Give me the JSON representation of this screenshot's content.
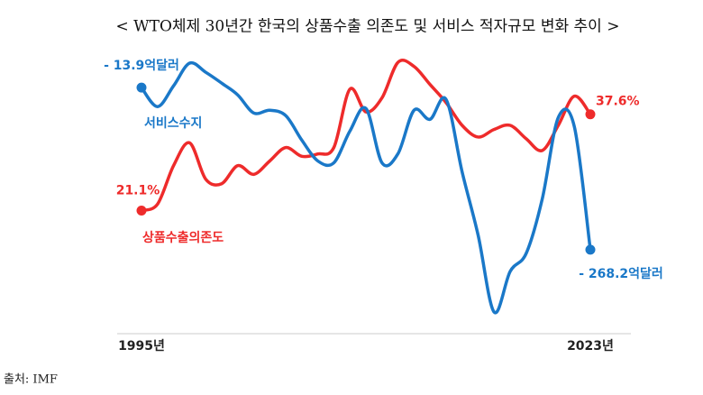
{
  "chart_data": {
    "type": "line",
    "title": "< WTO체제 30년간 한국의 상품수출 의존도 및 서비스 적자규모 변화 추이 >",
    "source": "출처: IMF",
    "categories": [
      "1995년",
      null,
      null,
      null,
      null,
      null,
      null,
      null,
      null,
      null,
      null,
      null,
      null,
      null,
      null,
      null,
      null,
      null,
      null,
      null,
      null,
      null,
      null,
      null,
      null,
      null,
      null,
      null,
      "2023년"
    ],
    "ylim": [
      0,
      51
    ],
    "y2lim": [
      -400,
      67
    ],
    "series": [
      {
        "name": "상품수출의존도",
        "color": "#ee2b2b",
        "values": [
          21.1,
          22.2,
          28.8,
          32.7,
          26.5,
          25.7,
          28.8,
          27.3,
          29.6,
          31.9,
          30.4,
          30.8,
          31.9,
          41.9,
          38.0,
          40.4,
          46.5,
          45.8,
          42.7,
          39.6,
          35.7,
          33.7,
          35.0,
          35.7,
          33.4,
          31.4,
          35.7,
          40.7,
          37.6
        ],
        "value_labels": [
          "21.1%",
          null,
          null,
          null,
          null,
          null,
          null,
          null,
          null,
          null,
          null,
          null,
          null,
          null,
          null,
          null,
          null,
          null,
          null,
          null,
          null,
          null,
          null,
          null,
          null,
          null,
          null,
          null,
          "37.6%"
        ]
      },
      {
        "name": "서비스수지",
        "color": "#1a78c8",
        "axis": "y2",
        "values": [
          -13.9,
          -43.7,
          -11.1,
          24.5,
          10.3,
          -6.8,
          -25.3,
          -53.7,
          -49.4,
          -57.9,
          -96.3,
          -129.0,
          -131.8,
          -82.1,
          -46.6,
          -131.8,
          -117.6,
          -49.4,
          -63.6,
          -32.4,
          -146.0,
          -245.5,
          -366.2,
          -302.3,
          -273.9,
          -188.6,
          -60.8,
          -75.0,
          -268.2
        ],
        "value_labels": [
          "- 13.9억달러",
          null,
          null,
          null,
          null,
          null,
          null,
          null,
          null,
          null,
          null,
          null,
          null,
          null,
          null,
          null,
          null,
          null,
          null,
          null,
          null,
          null,
          null,
          null,
          null,
          null,
          null,
          null,
          "- 268.2억달러"
        ]
      }
    ]
  }
}
